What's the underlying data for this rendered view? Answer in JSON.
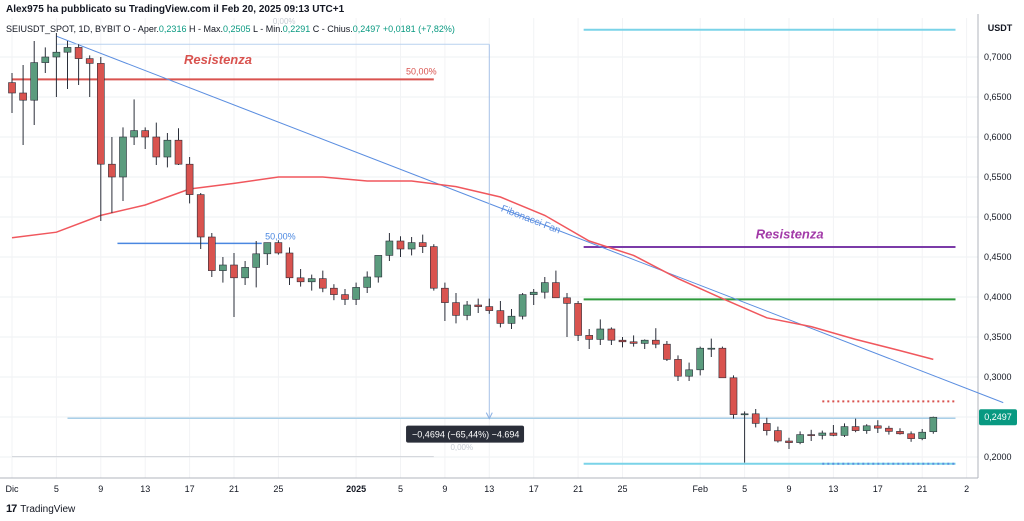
{
  "header": {
    "publisher": "Alex975 ha pubblicato su TradingView.com il Feb 20, 2025 09:13 UTC+1",
    "symbol": "SEIUSDT_SPOT, 1D, BYBIT",
    "open_label": "O - Aper.",
    "open": "0,2316",
    "high_label": "H - Max.",
    "high": "0,2505",
    "low_label": "L - Min.",
    "low": "0,2291",
    "close_label": "C - Chius.",
    "close": "0,2497",
    "change": "+0,0181 (+7,82%)"
  },
  "footer": {
    "brand": "TradingView",
    "logo": "17"
  },
  "colors": {
    "up": "#5b9c7e",
    "down": "#d9534f",
    "ma": "#f0575d",
    "fan": "#5b8ee0",
    "resist1": "#d9534f",
    "resist2": "#7b3ba8",
    "support_green": "#2e9a3c",
    "support_blue": "#4a87e0",
    "cyan": "#7ad3e8"
  },
  "chart_data": {
    "type": "candlestick",
    "price_axis_label": "USDT",
    "ylim": [
      0.18,
      0.73
    ],
    "y_ticks": [
      "0,7000",
      "0,6500",
      "0,6000",
      "0,5500",
      "0,5000",
      "0,4500",
      "0,4000",
      "0,3500",
      "0,3000",
      "0,2000"
    ],
    "y_tick_values": [
      0.7,
      0.65,
      0.6,
      0.55,
      0.5,
      0.45,
      0.4,
      0.35,
      0.3,
      0.2
    ],
    "last_price_label": "0,2497",
    "last_price": 0.2497,
    "x_ticks": [
      {
        "label": "Dic",
        "i": 0
      },
      {
        "label": "5",
        "i": 4
      },
      {
        "label": "9",
        "i": 8
      },
      {
        "label": "13",
        "i": 12
      },
      {
        "label": "17",
        "i": 16
      },
      {
        "label": "21",
        "i": 20
      },
      {
        "label": "25",
        "i": 24
      },
      {
        "label": "2025",
        "i": 31,
        "bold": true
      },
      {
        "label": "5",
        "i": 35
      },
      {
        "label": "9",
        "i": 39
      },
      {
        "label": "13",
        "i": 43
      },
      {
        "label": "17",
        "i": 47
      },
      {
        "label": "21",
        "i": 51
      },
      {
        "label": "25",
        "i": 55
      },
      {
        "label": "Feb",
        "i": 62
      },
      {
        "label": "5",
        "i": 66
      },
      {
        "label": "9",
        "i": 70
      },
      {
        "label": "13",
        "i": 74
      },
      {
        "label": "17",
        "i": 78
      },
      {
        "label": "21",
        "i": 82
      },
      {
        "label": "2",
        "i": 86
      }
    ],
    "candles": [
      {
        "o": 0.668,
        "h": 0.68,
        "l": 0.63,
        "c": 0.655
      },
      {
        "o": 0.655,
        "h": 0.69,
        "l": 0.59,
        "c": 0.646
      },
      {
        "o": 0.646,
        "h": 0.72,
        "l": 0.615,
        "c": 0.693
      },
      {
        "o": 0.693,
        "h": 0.712,
        "l": 0.68,
        "c": 0.7
      },
      {
        "o": 0.7,
        "h": 0.73,
        "l": 0.65,
        "c": 0.706
      },
      {
        "o": 0.706,
        "h": 0.72,
        "l": 0.66,
        "c": 0.712
      },
      {
        "o": 0.712,
        "h": 0.716,
        "l": 0.665,
        "c": 0.698
      },
      {
        "o": 0.698,
        "h": 0.702,
        "l": 0.65,
        "c": 0.692
      },
      {
        "o": 0.692,
        "h": 0.7,
        "l": 0.495,
        "c": 0.566
      },
      {
        "o": 0.566,
        "h": 0.6,
        "l": 0.505,
        "c": 0.55
      },
      {
        "o": 0.55,
        "h": 0.612,
        "l": 0.52,
        "c": 0.6
      },
      {
        "o": 0.6,
        "h": 0.647,
        "l": 0.59,
        "c": 0.608
      },
      {
        "o": 0.608,
        "h": 0.612,
        "l": 0.585,
        "c": 0.6
      },
      {
        "o": 0.6,
        "h": 0.618,
        "l": 0.565,
        "c": 0.575
      },
      {
        "o": 0.575,
        "h": 0.605,
        "l": 0.562,
        "c": 0.596
      },
      {
        "o": 0.596,
        "h": 0.611,
        "l": 0.565,
        "c": 0.566
      },
      {
        "o": 0.566,
        "h": 0.575,
        "l": 0.517,
        "c": 0.528
      },
      {
        "o": 0.528,
        "h": 0.53,
        "l": 0.46,
        "c": 0.475
      },
      {
        "o": 0.475,
        "h": 0.48,
        "l": 0.425,
        "c": 0.433
      },
      {
        "o": 0.433,
        "h": 0.45,
        "l": 0.418,
        "c": 0.44
      },
      {
        "o": 0.44,
        "h": 0.455,
        "l": 0.375,
        "c": 0.424
      },
      {
        "o": 0.424,
        "h": 0.445,
        "l": 0.415,
        "c": 0.437
      },
      {
        "o": 0.437,
        "h": 0.47,
        "l": 0.412,
        "c": 0.454
      },
      {
        "o": 0.454,
        "h": 0.468,
        "l": 0.44,
        "c": 0.468
      },
      {
        "o": 0.468,
        "h": 0.471,
        "l": 0.453,
        "c": 0.455
      },
      {
        "o": 0.455,
        "h": 0.462,
        "l": 0.415,
        "c": 0.424
      },
      {
        "o": 0.424,
        "h": 0.435,
        "l": 0.413,
        "c": 0.419
      },
      {
        "o": 0.419,
        "h": 0.428,
        "l": 0.408,
        "c": 0.423
      },
      {
        "o": 0.423,
        "h": 0.433,
        "l": 0.406,
        "c": 0.411
      },
      {
        "o": 0.411,
        "h": 0.416,
        "l": 0.396,
        "c": 0.403
      },
      {
        "o": 0.403,
        "h": 0.41,
        "l": 0.39,
        "c": 0.397
      },
      {
        "o": 0.397,
        "h": 0.418,
        "l": 0.39,
        "c": 0.412
      },
      {
        "o": 0.412,
        "h": 0.432,
        "l": 0.405,
        "c": 0.425
      },
      {
        "o": 0.425,
        "h": 0.452,
        "l": 0.418,
        "c": 0.452
      },
      {
        "o": 0.452,
        "h": 0.48,
        "l": 0.445,
        "c": 0.47
      },
      {
        "o": 0.47,
        "h": 0.476,
        "l": 0.45,
        "c": 0.46
      },
      {
        "o": 0.46,
        "h": 0.475,
        "l": 0.452,
        "c": 0.468
      },
      {
        "o": 0.468,
        "h": 0.478,
        "l": 0.455,
        "c": 0.463
      },
      {
        "o": 0.463,
        "h": 0.466,
        "l": 0.408,
        "c": 0.411
      },
      {
        "o": 0.411,
        "h": 0.418,
        "l": 0.37,
        "c": 0.393
      },
      {
        "o": 0.393,
        "h": 0.405,
        "l": 0.367,
        "c": 0.377
      },
      {
        "o": 0.377,
        "h": 0.395,
        "l": 0.371,
        "c": 0.39
      },
      {
        "o": 0.39,
        "h": 0.398,
        "l": 0.38,
        "c": 0.388
      },
      {
        "o": 0.388,
        "h": 0.398,
        "l": 0.379,
        "c": 0.383
      },
      {
        "o": 0.383,
        "h": 0.395,
        "l": 0.362,
        "c": 0.367
      },
      {
        "o": 0.367,
        "h": 0.385,
        "l": 0.36,
        "c": 0.376
      },
      {
        "o": 0.376,
        "h": 0.405,
        "l": 0.372,
        "c": 0.403
      },
      {
        "o": 0.403,
        "h": 0.41,
        "l": 0.39,
        "c": 0.406
      },
      {
        "o": 0.406,
        "h": 0.425,
        "l": 0.398,
        "c": 0.418
      },
      {
        "o": 0.418,
        "h": 0.433,
        "l": 0.4,
        "c": 0.399
      },
      {
        "o": 0.399,
        "h": 0.405,
        "l": 0.35,
        "c": 0.392
      },
      {
        "o": 0.392,
        "h": 0.395,
        "l": 0.345,
        "c": 0.352
      },
      {
        "o": 0.352,
        "h": 0.36,
        "l": 0.335,
        "c": 0.347
      },
      {
        "o": 0.347,
        "h": 0.372,
        "l": 0.34,
        "c": 0.36
      },
      {
        "o": 0.36,
        "h": 0.362,
        "l": 0.34,
        "c": 0.346
      },
      {
        "o": 0.346,
        "h": 0.35,
        "l": 0.337,
        "c": 0.344
      },
      {
        "o": 0.344,
        "h": 0.352,
        "l": 0.338,
        "c": 0.342
      },
      {
        "o": 0.342,
        "h": 0.347,
        "l": 0.335,
        "c": 0.346
      },
      {
        "o": 0.346,
        "h": 0.361,
        "l": 0.336,
        "c": 0.341
      },
      {
        "o": 0.341,
        "h": 0.345,
        "l": 0.32,
        "c": 0.322
      },
      {
        "o": 0.322,
        "h": 0.327,
        "l": 0.295,
        "c": 0.301
      },
      {
        "o": 0.301,
        "h": 0.318,
        "l": 0.295,
        "c": 0.309
      },
      {
        "o": 0.309,
        "h": 0.338,
        "l": 0.302,
        "c": 0.336
      },
      {
        "o": 0.336,
        "h": 0.348,
        "l": 0.325,
        "c": 0.336
      },
      {
        "o": 0.336,
        "h": 0.338,
        "l": 0.299,
        "c": 0.299
      },
      {
        "o": 0.299,
        "h": 0.302,
        "l": 0.248,
        "c": 0.253
      },
      {
        "o": 0.253,
        "h": 0.257,
        "l": 0.193,
        "c": 0.254
      },
      {
        "o": 0.254,
        "h": 0.26,
        "l": 0.237,
        "c": 0.242
      },
      {
        "o": 0.242,
        "h": 0.249,
        "l": 0.227,
        "c": 0.233
      },
      {
        "o": 0.233,
        "h": 0.238,
        "l": 0.218,
        "c": 0.22
      },
      {
        "o": 0.22,
        "h": 0.224,
        "l": 0.21,
        "c": 0.218
      },
      {
        "o": 0.218,
        "h": 0.232,
        "l": 0.216,
        "c": 0.228
      },
      {
        "o": 0.228,
        "h": 0.234,
        "l": 0.22,
        "c": 0.227
      },
      {
        "o": 0.227,
        "h": 0.233,
        "l": 0.222,
        "c": 0.23
      },
      {
        "o": 0.23,
        "h": 0.24,
        "l": 0.226,
        "c": 0.227
      },
      {
        "o": 0.227,
        "h": 0.242,
        "l": 0.225,
        "c": 0.238
      },
      {
        "o": 0.238,
        "h": 0.248,
        "l": 0.231,
        "c": 0.233
      },
      {
        "o": 0.233,
        "h": 0.241,
        "l": 0.229,
        "c": 0.239
      },
      {
        "o": 0.239,
        "h": 0.246,
        "l": 0.23,
        "c": 0.236
      },
      {
        "o": 0.236,
        "h": 0.239,
        "l": 0.228,
        "c": 0.232
      },
      {
        "o": 0.232,
        "h": 0.236,
        "l": 0.228,
        "c": 0.229
      },
      {
        "o": 0.229,
        "h": 0.232,
        "l": 0.219,
        "c": 0.223
      },
      {
        "o": 0.223,
        "h": 0.235,
        "l": 0.221,
        "c": 0.231
      },
      {
        "o": 0.2316,
        "h": 0.2505,
        "l": 0.2291,
        "c": 0.2497
      }
    ],
    "moving_average": {
      "points": [
        [
          0,
          0.474
        ],
        [
          4,
          0.481
        ],
        [
          8,
          0.502
        ],
        [
          12,
          0.515
        ],
        [
          16,
          0.535
        ],
        [
          20,
          0.542
        ],
        [
          24,
          0.55
        ],
        [
          28,
          0.55
        ],
        [
          32,
          0.545
        ],
        [
          36,
          0.545
        ],
        [
          40,
          0.538
        ],
        [
          44,
          0.525
        ],
        [
          48,
          0.502
        ],
        [
          52,
          0.47
        ],
        [
          56,
          0.452
        ],
        [
          60,
          0.423
        ],
        [
          64,
          0.398
        ],
        [
          68,
          0.374
        ],
        [
          72,
          0.363
        ],
        [
          76,
          0.347
        ],
        [
          80,
          0.333
        ],
        [
          83,
          0.322
        ]
      ]
    },
    "fib_fan": {
      "label": "Fibonacci Fan",
      "line": [
        [
          4,
          0.726
        ],
        [
          89.3,
          0.268
        ]
      ],
      "dashed_vertical": {
        "i": 43,
        "from": 0.716,
        "to": 0.248
      },
      "dotted_top": {
        "from": 4,
        "to": 43,
        "y": 0.716
      },
      "labels": {
        "top": "0,00%",
        "mid": "50,00%",
        "bottom": "0,00%"
      }
    },
    "horizontal_lines": [
      {
        "name": "resist-red",
        "y": 0.672,
        "from": 0,
        "to": 38,
        "label": "50,00%"
      },
      {
        "name": "resist-purple",
        "y": 0.4625,
        "from": 51.5,
        "to": 85,
        "label": "Resistenza"
      },
      {
        "name": "support-green",
        "y": 0.397,
        "from": 51.5,
        "to": 85
      },
      {
        "name": "support-blue",
        "y": 0.467,
        "from": 9.5,
        "to": 22.5,
        "label": "50,00%"
      },
      {
        "name": "cyan-top",
        "y": 0.734,
        "from": 51.5,
        "to": 85
      },
      {
        "name": "cyan-bottom",
        "y": 0.1915,
        "from": 51.5,
        "to": 85
      },
      {
        "name": "light-blue-mid",
        "y": 0.2485,
        "from": 5,
        "to": 85
      },
      {
        "name": "gray-bottom",
        "y": 0.2005,
        "from": 0,
        "to": 38
      }
    ],
    "dotted_lines": [
      {
        "name": "red-dotted",
        "y": 0.2695,
        "from": 73,
        "to": 85
      },
      {
        "name": "blue-dotted",
        "y": 0.1915,
        "from": 73,
        "to": 85
      }
    ],
    "annotations": [
      {
        "text": "Resistenza",
        "color": "#d9534f",
        "i": 15.5,
        "y": 0.691
      },
      {
        "text": "Resistenza",
        "color": "#a23aa8",
        "i": 67,
        "y": 0.473
      }
    ],
    "measure_box": {
      "text": "−0,4694 (−65,44%) −4.694",
      "i": 35.5,
      "y": 0.228
    }
  }
}
